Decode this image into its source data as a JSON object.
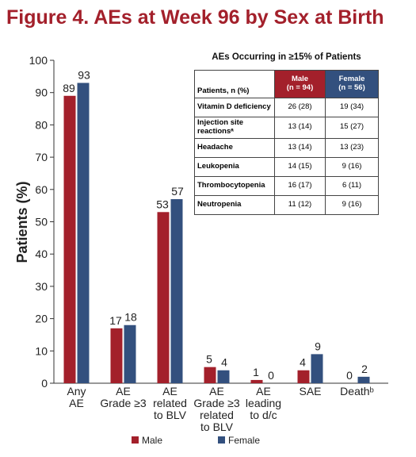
{
  "chart_data": {
    "type": "bar",
    "title": "Figure 4. AEs at Week 96 by Sex at Birth",
    "y_label": "Patients (%)",
    "categories": [
      "Any\nAE",
      "AE\nGrade ≥3",
      "AE\nrelated\nto BLV",
      "AE\nGrade ≥3\nrelated\nto BLV",
      "AE\nleading\nto d/c",
      "SAE",
      "Deathᵇ"
    ],
    "series": [
      {
        "name": "Male",
        "color": "#a3202b",
        "values": [
          89,
          17,
          53,
          5,
          1,
          4,
          0
        ]
      },
      {
        "name": "Female",
        "color": "#33507e",
        "values": [
          93,
          18,
          57,
          4,
          0,
          9,
          2
        ]
      }
    ],
    "ylim": [
      0,
      100
    ],
    "yticks": [
      0,
      10,
      20,
      30,
      40,
      50,
      60,
      70,
      80,
      90,
      100
    ],
    "grid": false
  },
  "table": {
    "title": "AEs Occurring in ≥15% of Patients",
    "header": [
      "Patients, n (%)",
      "Male\n(n = 94)",
      "Female\n(n = 56)"
    ],
    "rows": [
      [
        "Vitamin D deficiency",
        "26 (28)",
        "19 (34)"
      ],
      [
        "Injection site reactionsᵃ",
        "13 (14)",
        "15 (27)"
      ],
      [
        "Headache",
        "13 (14)",
        "13 (23)"
      ],
      [
        "Leukopenia",
        "14 (15)",
        "9 (16)"
      ],
      [
        "Thrombocytopenia",
        "16 (17)",
        "6 (11)"
      ],
      [
        "Neutropenia",
        "11 (12)",
        "9 (16)"
      ]
    ]
  }
}
